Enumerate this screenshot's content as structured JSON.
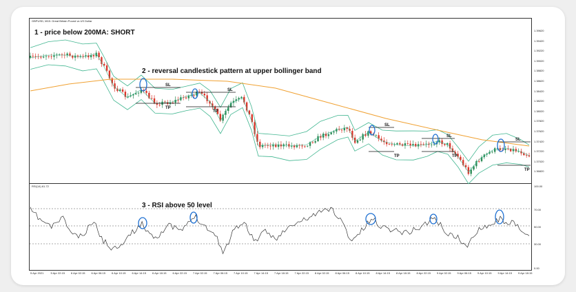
{
  "chart_window": {
    "symbol_title": "GBPUSD, M15: Great Britain Pound vs US Dollar",
    "rsi_title": "RSI(14) 61.72"
  },
  "annotations": {
    "step1": "1 - price below 200MA: SHORT",
    "step2": "2 - reversal candlestick pattern at upper bollinger band",
    "step3": "3 - RSI above 50 level"
  },
  "trade_labels": {
    "sl": "SL",
    "tp": "TP"
  },
  "price_axis_labels": [
    "1.39620",
    "1.39420",
    "1.39220",
    "1.39020",
    "1.38820",
    "1.38620",
    "1.38420",
    "1.38220",
    "1.38020",
    "1.37820",
    "1.37620",
    "1.37420",
    "1.37220",
    "1.37020",
    "1.36820"
  ],
  "rsi_axis_labels": [
    "100.00",
    "70.00",
    "50.00",
    "30.00",
    "0.00"
  ],
  "time_axis_labels": [
    "5 Apr 2021",
    "5 Apr 22:15",
    "6 Apr 02:15",
    "6 Apr 06:15",
    "6 Apr 10:15",
    "6 Apr 14:15",
    "6 Apr 18:15",
    "6 Apr 22:15",
    "7 Apr 02:15",
    "7 Apr 06:15",
    "7 Apr 10:15",
    "7 Apr 14:15",
    "7 Apr 18:15",
    "7 Apr 22:15",
    "8 Apr 02:15",
    "8 Apr 06:15",
    "8 Apr 10:15",
    "8 Apr 14:15",
    "8 Apr 18:15",
    "8 Apr 22:15",
    "9 Apr 02:15",
    "9 Apr 06:15",
    "9 Apr 10:15",
    "9 Apr 14:15",
    "9 Apr 18:15"
  ],
  "chart_data": {
    "type": "candlestick",
    "symbol": "GBPUSD",
    "timeframe": "M15",
    "overlays": [
      "Bollinger Bands",
      "200 MA"
    ],
    "indicator": "RSI(14)",
    "rsi_levels": [
      70,
      50,
      30
    ],
    "colors": {
      "bull": "#2e8b57",
      "bear": "#d9362b",
      "bollinger": "#3fb58f",
      "ma200": "#f0a030",
      "marker": "#1d6fd1",
      "rsi": "#333333"
    }
  }
}
